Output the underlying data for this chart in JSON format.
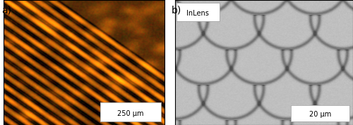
{
  "label_a": "a)",
  "label_b": "b)",
  "scalebar_a": "250 μm",
  "scalebar_b": "20 μm",
  "inlens_text": "InLens",
  "bg_color": "#ffffff",
  "border_color": "#000000",
  "scalebar_box_color": "#ffffff",
  "scalebar_text_color": "#000000",
  "inlens_box_color": "#ffffff",
  "inlens_text_color": "#000000",
  "label_color": "#000000",
  "label_fontsize": 10,
  "scalebar_fontsize": 7,
  "inlens_fontsize": 7,
  "fig_width": 5.0,
  "fig_height": 1.77,
  "dpi": 100
}
